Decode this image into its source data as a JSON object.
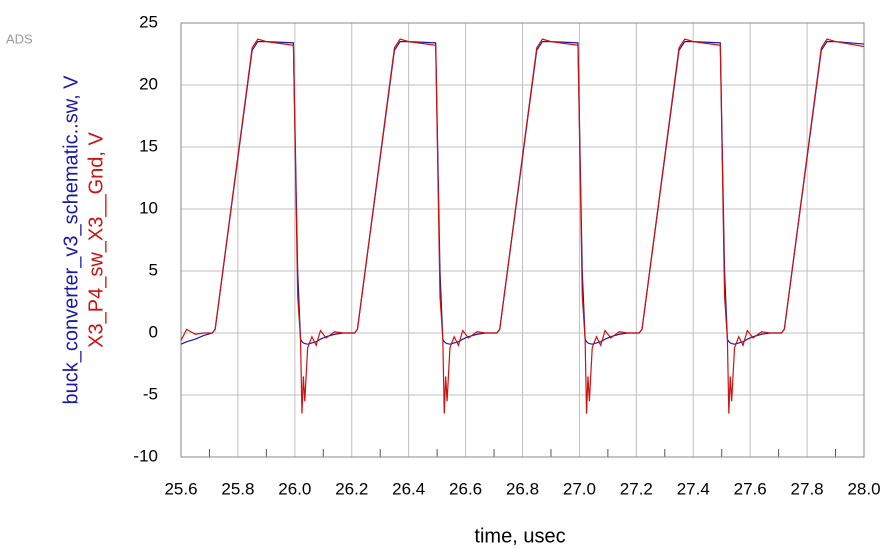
{
  "chart_data": {
    "type": "line",
    "watermark": "ADS",
    "xlabel": "time, usec",
    "x": [
      25.6,
      25.62,
      25.65,
      25.68,
      25.71,
      25.72,
      25.85,
      25.87,
      25.9,
      25.995,
      26.01,
      26.02,
      26.025,
      26.03,
      26.035,
      26.045,
      26.06,
      26.075,
      26.09,
      26.11,
      26.14,
      26.17,
      26.21,
      26.22,
      26.35,
      26.37,
      26.4,
      26.495,
      26.51,
      26.52,
      26.525,
      26.53,
      26.535,
      26.545,
      26.56,
      26.575,
      26.59,
      26.61,
      26.64,
      26.67,
      26.71,
      26.72,
      26.85,
      26.87,
      26.9,
      26.995,
      27.01,
      27.02,
      27.025,
      27.03,
      27.035,
      27.045,
      27.06,
      27.075,
      27.09,
      27.11,
      27.14,
      27.17,
      27.21,
      27.22,
      27.35,
      27.37,
      27.4,
      27.495,
      27.51,
      27.52,
      27.525,
      27.53,
      27.535,
      27.545,
      27.56,
      27.575,
      27.59,
      27.61,
      27.64,
      27.67,
      27.71,
      27.72,
      27.85,
      27.87,
      27.9,
      28.0
    ],
    "series": [
      {
        "name": "buck_converter_v3_schematic..sw, V",
        "color": "#1a1aa6",
        "values": [
          -0.9,
          -0.7,
          -0.5,
          -0.2,
          0,
          0.3,
          22.8,
          23.5,
          23.5,
          23.4,
          5,
          -0.5,
          -0.7,
          -0.8,
          -0.85,
          -0.9,
          -0.8,
          -0.7,
          -0.5,
          -0.3,
          -0.1,
          0,
          0,
          0.3,
          22.8,
          23.5,
          23.5,
          23.4,
          5,
          -0.5,
          -0.7,
          -0.8,
          -0.85,
          -0.9,
          -0.8,
          -0.7,
          -0.5,
          -0.3,
          -0.1,
          0,
          0,
          0.3,
          22.8,
          23.5,
          23.5,
          23.4,
          5,
          -0.5,
          -0.7,
          -0.8,
          -0.85,
          -0.9,
          -0.8,
          -0.7,
          -0.5,
          -0.3,
          -0.1,
          0,
          0,
          0.3,
          22.8,
          23.5,
          23.5,
          23.4,
          5,
          -0.5,
          -0.7,
          -0.8,
          -0.85,
          -0.9,
          -0.8,
          -0.7,
          -0.5,
          -0.3,
          -0.1,
          0,
          0,
          0.3,
          22.8,
          23.5,
          23.5,
          23.3
        ]
      },
      {
        "name": "X3_P4_sw_X3__Gnd, V",
        "color": "#cc1111",
        "values": [
          -0.6,
          0.3,
          -0.1,
          0,
          0,
          0.3,
          23,
          23.7,
          23.5,
          23.2,
          3,
          -0.5,
          -6.5,
          -3.5,
          -5.5,
          -1.2,
          -0.3,
          -1,
          0.2,
          -0.4,
          0.1,
          0,
          0,
          0.3,
          23,
          23.7,
          23.5,
          23.2,
          3,
          -0.5,
          -6.5,
          -3.5,
          -5.5,
          -1.2,
          -0.3,
          -1,
          0.2,
          -0.4,
          0.1,
          0,
          0,
          0.3,
          23,
          23.7,
          23.5,
          23.2,
          3,
          -0.5,
          -6.5,
          -3.5,
          -5.5,
          -1.2,
          -0.3,
          -1,
          0.2,
          -0.4,
          0.1,
          0,
          0,
          0.3,
          23,
          23.7,
          23.5,
          23.2,
          3,
          -0.5,
          -6.5,
          -3.5,
          -5.5,
          -1.2,
          -0.3,
          -1,
          0.2,
          -0.4,
          0.1,
          0,
          0,
          0.3,
          23,
          23.7,
          23.5,
          23.1
        ]
      }
    ],
    "xlim": [
      25.6,
      28.0
    ],
    "xticks": [
      25.6,
      25.8,
      {
        "value": 26,
        "label": "26.0"
      },
      26.2,
      26.4,
      26.6,
      26.8,
      {
        "value": 27,
        "label": "27.0"
      },
      27.2,
      27.4,
      27.6,
      27.8,
      {
        "value": 28,
        "label": "28.0"
      }
    ],
    "ylim": [
      -10,
      25
    ],
    "yticks": [
      -10,
      -5,
      0,
      5,
      10,
      15,
      20,
      25
    ],
    "grid": true
  }
}
